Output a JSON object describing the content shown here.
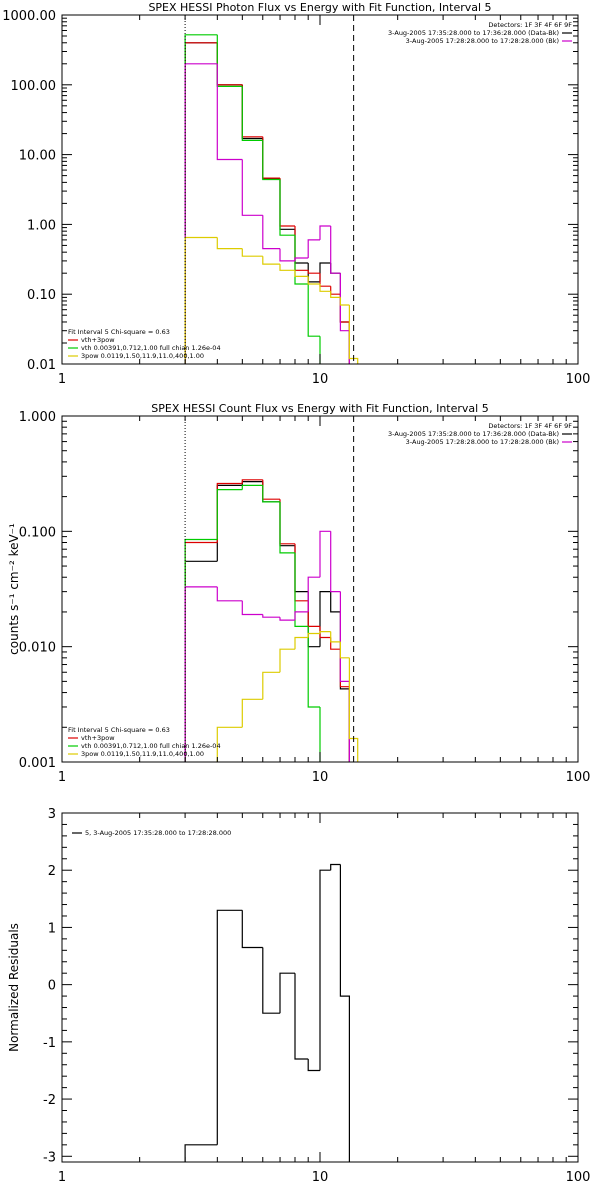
{
  "chart_data": [
    {
      "type": "line",
      "title": "SPEX HESSI Photon Flux vs Energy with Fit Function, Interval 5",
      "xscale": "log",
      "yscale": "log",
      "xlim": [
        1,
        100
      ],
      "ylim": [
        0.01,
        1000
      ],
      "grid": false,
      "x_ticks": [
        "1",
        "10",
        "100"
      ],
      "y_ticks": [
        "0.01",
        "0.10",
        "1.00",
        "10.00",
        "100.00",
        "1000.00"
      ],
      "x_tick_values": [
        1,
        10,
        100
      ],
      "y_tick_values": [
        0.01,
        0.1,
        1,
        10,
        100,
        1000
      ],
      "vlines": [
        {
          "x": 3,
          "style": "dotted"
        },
        {
          "x": 13.5,
          "style": "dashed"
        }
      ],
      "legend_topright": {
        "lines": [
          {
            "text": "Detectors: 1F 3F 4F 6F 9F",
            "color": null
          },
          {
            "text": "3-Aug-2005 17:35:28.000 to 17:36:28.000 (Data-Bk)",
            "color": "#000000"
          },
          {
            "text": "3-Aug-2005 17:28:28.000 to 17:28:28.000 (Bk)",
            "color": "#cc00cc"
          }
        ]
      },
      "legend_bottomleft": {
        "lines": [
          {
            "text": "Fit Interval 5   Chi-square = 0.63",
            "color": null
          },
          {
            "text": "vth+3pow",
            "color": "#dd0000"
          },
          {
            "text": "vth 0.00391,0.712,1.00   full chian 1.26e-04",
            "color": "#00cc00"
          },
          {
            "text": "3pow 0.0119,1.50,11.9,11.0,400,1.00",
            "color": "#ddcc00"
          }
        ]
      },
      "edges": [
        3,
        4,
        5,
        6,
        7,
        8,
        9,
        10,
        11,
        12,
        13,
        14,
        15
      ],
      "series": [
        {
          "color": "#000000",
          "values": [
            400,
            100,
            17,
            4.5,
            0.85,
            0.28,
            0.15,
            0.28,
            0.2,
            0.04,
            null,
            null
          ]
        },
        {
          "color": "#dd0000",
          "values": [
            400,
            100,
            18,
            4.6,
            0.95,
            0.22,
            0.2,
            0.13,
            0.1,
            0.04,
            null,
            null
          ]
        },
        {
          "color": "#00cc00",
          "values": [
            520,
            95,
            16,
            4.4,
            0.7,
            0.14,
            0.025,
            0.003,
            null,
            null,
            null,
            null
          ]
        },
        {
          "color": "#cc00cc",
          "values": [
            200,
            8.5,
            1.35,
            0.45,
            0.3,
            0.33,
            0.6,
            0.95,
            0.2,
            0.03,
            null,
            null
          ]
        },
        {
          "color": "#ddcc00",
          "values": [
            0.65,
            0.45,
            0.35,
            0.27,
            0.22,
            0.18,
            0.14,
            0.11,
            0.09,
            0.07,
            0.012,
            null
          ]
        }
      ]
    },
    {
      "type": "line",
      "title": "SPEX HESSI Count Flux vs Energy with Fit Function, Interval 5",
      "ylabel": "counts s⁻¹ cm⁻² keV⁻¹",
      "xscale": "log",
      "yscale": "log",
      "xlim": [
        1,
        100
      ],
      "ylim": [
        0.001,
        1
      ],
      "grid": false,
      "x_ticks": [
        "1",
        "10",
        "100"
      ],
      "y_ticks": [
        "0.001",
        "0.010",
        "0.100",
        "1.000"
      ],
      "x_tick_values": [
        1,
        10,
        100
      ],
      "y_tick_values": [
        0.001,
        0.01,
        0.1,
        1
      ],
      "vlines": [
        {
          "x": 3,
          "style": "dotted"
        },
        {
          "x": 13.5,
          "style": "dashed"
        }
      ],
      "legend_topright": {
        "lines": [
          {
            "text": "Detectors: 1F 3F 4F 6F 9F",
            "color": null
          },
          {
            "text": "3-Aug-2005 17:35:28.000 to 17:36:28.000 (Data-Bk)",
            "color": "#000000"
          },
          {
            "text": "3-Aug-2005 17:28:28.000 to 17:28:28.000 (Bk)",
            "color": "#cc00cc"
          }
        ]
      },
      "legend_bottomleft": {
        "lines": [
          {
            "text": "Fit Interval 5   Chi-square = 0.63",
            "color": null
          },
          {
            "text": "vth+3pow",
            "color": "#dd0000"
          },
          {
            "text": "vth 0.00391,0.712,1.00   full chian 1.26e-04",
            "color": "#00cc00"
          },
          {
            "text": "3pow 0.0119,1.50,11.9,11.0,400,1.00",
            "color": "#ddcc00"
          }
        ]
      },
      "edges": [
        3,
        4,
        5,
        6,
        7,
        8,
        9,
        10,
        11,
        12,
        13,
        14,
        15
      ],
      "series": [
        {
          "color": "#000000",
          "values": [
            0.055,
            0.25,
            0.27,
            0.18,
            0.075,
            0.03,
            0.01,
            0.03,
            0.02,
            0.0043,
            null,
            null
          ]
        },
        {
          "color": "#dd0000",
          "values": [
            0.08,
            0.26,
            0.28,
            0.19,
            0.078,
            0.025,
            0.015,
            0.012,
            0.0095,
            0.0045,
            null,
            null
          ]
        },
        {
          "color": "#00cc00",
          "values": [
            0.085,
            0.23,
            0.25,
            0.18,
            0.065,
            0.015,
            0.003,
            0.0004,
            null,
            null,
            null,
            null
          ]
        },
        {
          "color": "#cc00cc",
          "values": [
            0.033,
            0.025,
            0.019,
            0.018,
            0.017,
            0.02,
            0.04,
            0.1,
            0.03,
            0.005,
            null,
            null
          ]
        },
        {
          "color": "#ddcc00",
          "values": [
            0.0006,
            0.002,
            0.0035,
            0.006,
            0.0095,
            0.012,
            0.013,
            0.0135,
            0.011,
            0.008,
            0.0016,
            null
          ]
        }
      ]
    },
    {
      "type": "line",
      "ylabel": "Normalized Residuals",
      "xscale": "log",
      "yscale": "linear",
      "xlim": [
        1,
        100
      ],
      "ylim": [
        -3.1,
        3
      ],
      "grid": false,
      "x_ticks": [
        "1",
        "10",
        "100"
      ],
      "y_ticks": [
        "-3",
        "-2",
        "-1",
        "0",
        "1",
        "2",
        "3"
      ],
      "x_tick_values": [
        1,
        10,
        100
      ],
      "y_tick_values": [
        -3,
        -2,
        -1,
        0,
        1,
        2,
        3
      ],
      "legend_topleft": {
        "lines": [
          {
            "text": "5, 3-Aug-2005 17:35:28.000 to 17:28:28.000",
            "color": "#000000"
          }
        ]
      },
      "edges": [
        3,
        4,
        5,
        6,
        7,
        8,
        9,
        10,
        11,
        12,
        13
      ],
      "series": [
        {
          "color": "#000000",
          "values": [
            -2.8,
            1.3,
            0.65,
            -0.5,
            0.2,
            -1.3,
            -1.5,
            2.0,
            2.1,
            -0.2
          ]
        }
      ]
    }
  ]
}
